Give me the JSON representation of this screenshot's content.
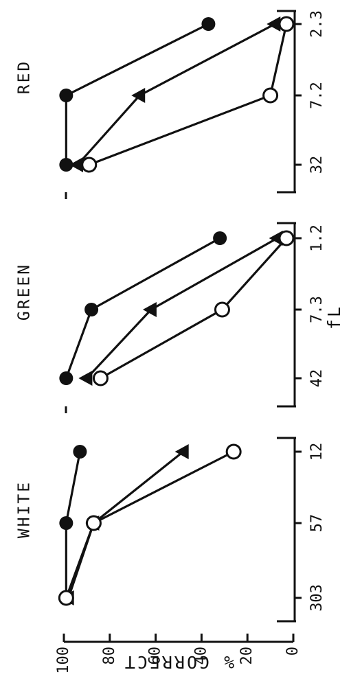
{
  "chart_data": {
    "type": "line",
    "orientation": "rotated-90-clockwise",
    "ylabel": "% CORRECT",
    "xlabel": "fL",
    "ylim": [
      0,
      100
    ],
    "yticks": [
      0,
      20,
      40,
      60,
      80,
      100
    ],
    "grid": false,
    "colors": {
      "ink": "#111111"
    },
    "markers": [
      "filled-circle",
      "filled-triangle",
      "open-circle"
    ],
    "panels": [
      {
        "title": "WHITE",
        "categories": [
          "303",
          "57",
          "12"
        ],
        "series": [
          {
            "marker": "filled-circle",
            "values": [
              99,
              99,
              93
            ]
          },
          {
            "marker": "filled-triangle",
            "values": [
              98,
              87,
              48
            ]
          },
          {
            "marker": "open-circle",
            "values": [
              99,
              87,
              26
            ]
          }
        ]
      },
      {
        "title": "GREEN",
        "categories": [
          "42",
          "7.3",
          "1.2"
        ],
        "series": [
          {
            "marker": "filled-circle",
            "values": [
              99,
              88,
              32
            ]
          },
          {
            "marker": "filled-triangle",
            "values": [
              90,
              62,
              7
            ]
          },
          {
            "marker": "open-circle",
            "values": [
              84,
              31,
              3
            ]
          }
        ]
      },
      {
        "title": "RED",
        "categories": [
          "32",
          "7.2",
          "2.3"
        ],
        "series": [
          {
            "marker": "filled-circle",
            "values": [
              99,
              99,
              37
            ]
          },
          {
            "marker": "filled-triangle",
            "values": [
              94,
              67,
              8
            ]
          },
          {
            "marker": "open-circle",
            "values": [
              89,
              10,
              3
            ]
          }
        ]
      }
    ]
  }
}
